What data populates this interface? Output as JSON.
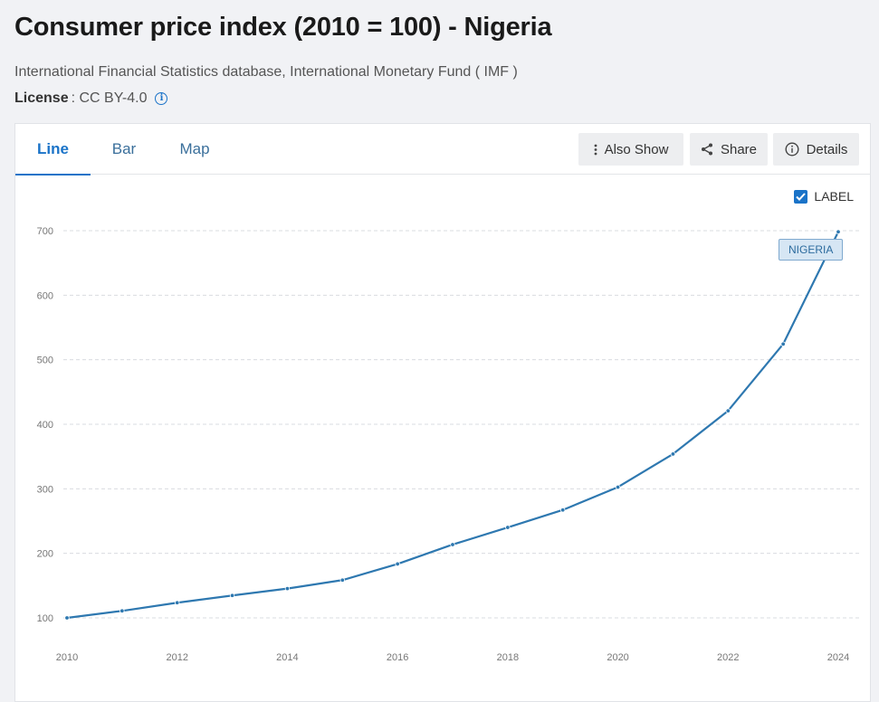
{
  "header": {
    "title": "Consumer price index (2010 = 100) - Nigeria",
    "source": "International Financial Statistics database, International Monetary Fund ( IMF )",
    "license_label": "License",
    "license_value": ": CC BY-4.0"
  },
  "tabs": [
    {
      "label": "Line",
      "active": true
    },
    {
      "label": "Bar",
      "active": false
    },
    {
      "label": "Map",
      "active": false
    }
  ],
  "toolbar": {
    "also_show_label": "Also Show",
    "share_label": "Share",
    "details_label": "Details"
  },
  "label_toggle": {
    "label": "LABEL",
    "checked": true
  },
  "colors": {
    "accent": "#1a73c8",
    "series": "#2e78b0"
  },
  "chart_data": {
    "type": "line",
    "title": "Consumer price index (2010 = 100) - Nigeria",
    "xlabel": "",
    "ylabel": "",
    "x": [
      2010,
      2011,
      2012,
      2013,
      2014,
      2015,
      2016,
      2017,
      2018,
      2019,
      2020,
      2021,
      2022,
      2023,
      2024
    ],
    "series": [
      {
        "name": "NIGERIA",
        "values": [
          100,
          110.8,
          123.5,
          134.7,
          145.4,
          158.5,
          183.5,
          213.6,
          240.1,
          267.2,
          302.6,
          353.9,
          420.9,
          524.3,
          698.3
        ]
      }
    ],
    "xticks": [
      2010,
      2012,
      2014,
      2016,
      2018,
      2020,
      2022,
      2024
    ],
    "yticks": [
      100,
      200,
      300,
      400,
      500,
      600,
      700
    ],
    "xlim": [
      2010,
      2024
    ],
    "ylim": [
      100,
      700
    ],
    "grid": true,
    "series_label": "NIGERIA"
  }
}
